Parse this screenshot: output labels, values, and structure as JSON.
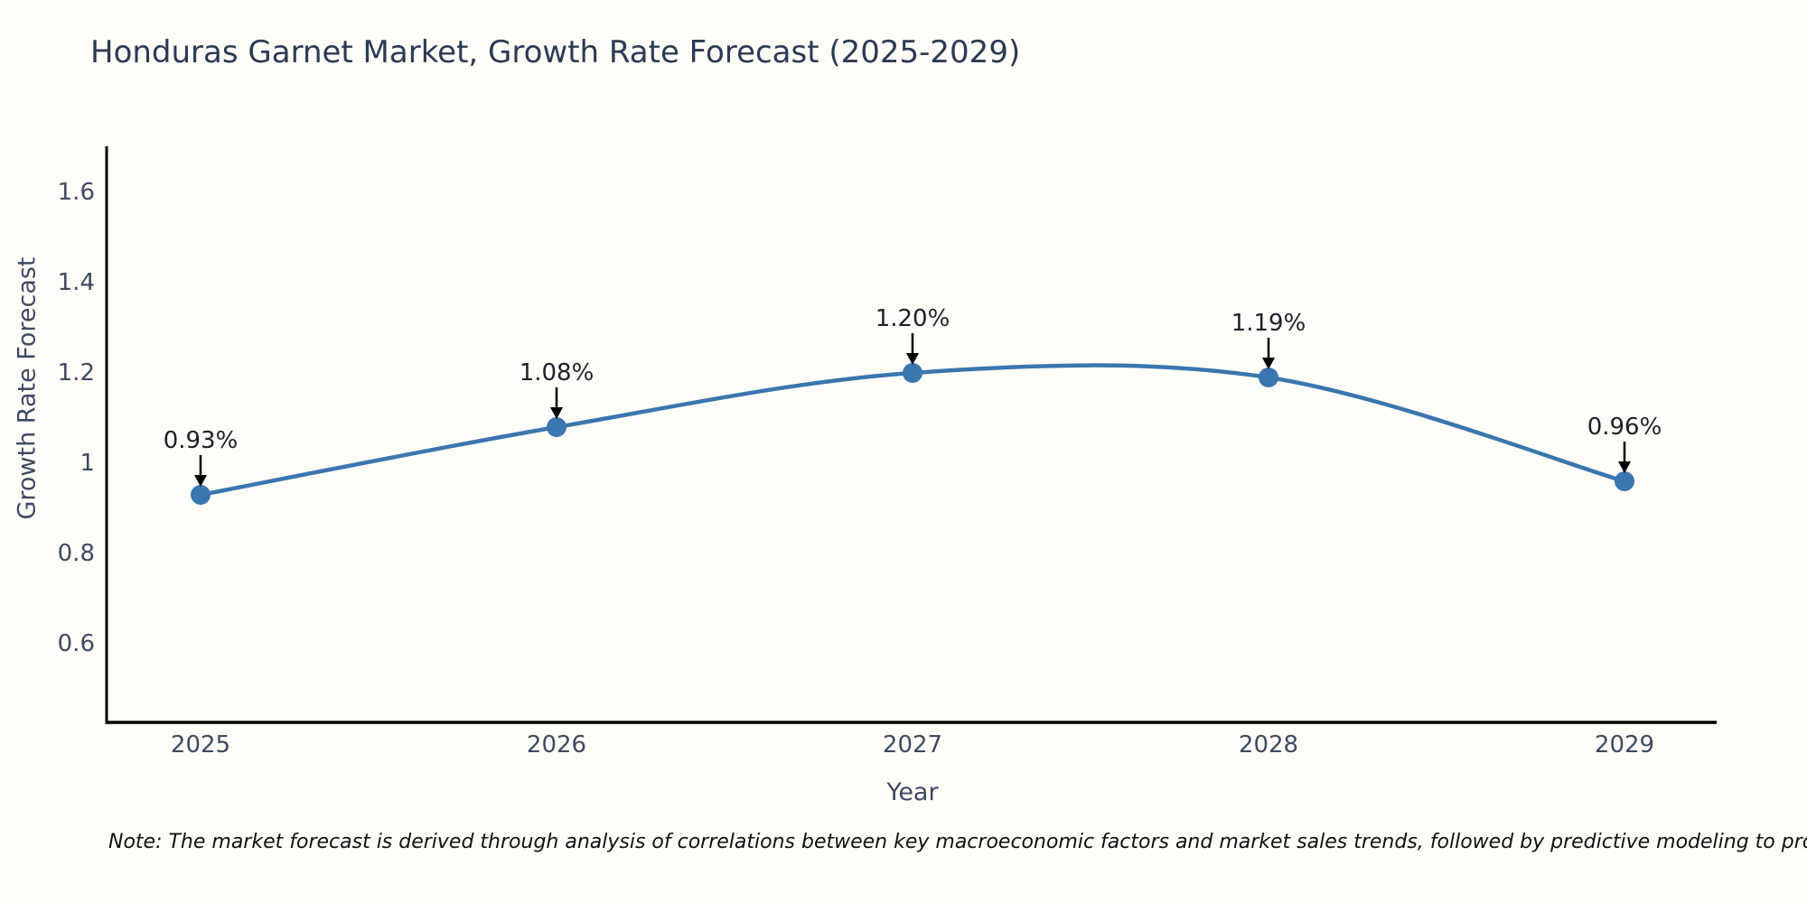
{
  "title": "Honduras Garnet Market, Growth Rate Forecast (2025-2029)",
  "note": "Note: The market forecast is derived through analysis of correlations between key macroeconomic factors and market sales trends, followed by predictive modeling to project future sales",
  "chart_data": {
    "type": "line",
    "title": "Honduras Garnet Market, Growth Rate Forecast (2025-2029)",
    "xlabel": "Year",
    "ylabel": "Growth Rate Forecast",
    "categories": [
      "2025",
      "2026",
      "2027",
      "2028",
      "2029"
    ],
    "x": [
      2025,
      2026,
      2027,
      2028,
      2029
    ],
    "series": [
      {
        "name": "Growth Rate Forecast",
        "values": [
          0.93,
          1.08,
          1.2,
          1.19,
          0.96
        ]
      }
    ],
    "point_labels": [
      "0.93%",
      "1.08%",
      "1.20%",
      "1.19%",
      "0.96%"
    ],
    "yticks": [
      0.6,
      0.8,
      1,
      1.2,
      1.4,
      1.6
    ],
    "ytick_labels": [
      "0.6",
      "0.8",
      "1",
      "1.2",
      "1.4",
      "1.6"
    ],
    "ylim": [
      0.43,
      1.7
    ],
    "grid": false,
    "legend_position": "none",
    "line_smooth": true,
    "line_color": "#3a76af",
    "marker_color": "#3a76af",
    "axis_color": "#000000",
    "arrow_color": "#000000"
  },
  "colors": {
    "background": "#fffdf8",
    "title": "#2b3a55",
    "axis_label": "#3d4a63",
    "tick_label": "#3d4a63",
    "annotation": "#1c2128",
    "note_text": "#111111"
  }
}
